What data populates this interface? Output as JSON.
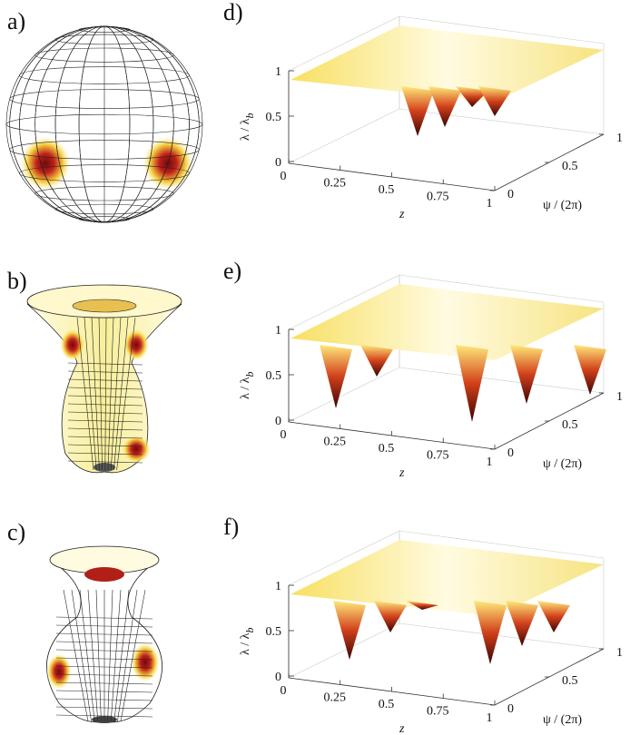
{
  "left_panels": [
    "a)",
    "b)",
    "c)"
  ],
  "right_panels": [
    {
      "label": "d)",
      "y_ticks": [
        "0",
        "0.5",
        "1"
      ],
      "z_ticks": [
        "0",
        "0.25",
        "0.5",
        "0.75",
        "1"
      ],
      "psi_ticks": [
        "0",
        "0.5",
        "1"
      ],
      "y_label": "λ / λ",
      "y_label_sub": "b",
      "x_label": "z",
      "psi_label": "ψ  / (2π)"
    },
    {
      "label": "e)",
      "y_ticks": [
        "0",
        "0.5",
        "1"
      ],
      "z_ticks": [
        "0",
        "0.25",
        "0.5",
        "0.75",
        "1"
      ],
      "psi_ticks": [
        "0",
        "0.5",
        "1"
      ],
      "y_label": "λ / λ",
      "y_label_sub": "b",
      "x_label": "z",
      "psi_label": "ψ  / (2π)"
    },
    {
      "label": "f)",
      "y_ticks": [
        "0",
        "0.5",
        "1"
      ],
      "z_ticks": [
        "0",
        "0.25",
        "0.5",
        "0.75",
        "1"
      ],
      "psi_ticks": [
        "0",
        "0.5",
        "1"
      ],
      "y_label": "λ / λ",
      "y_label_sub": "b",
      "x_label": "z",
      "psi_label": "ψ  / (2π)"
    }
  ]
}
